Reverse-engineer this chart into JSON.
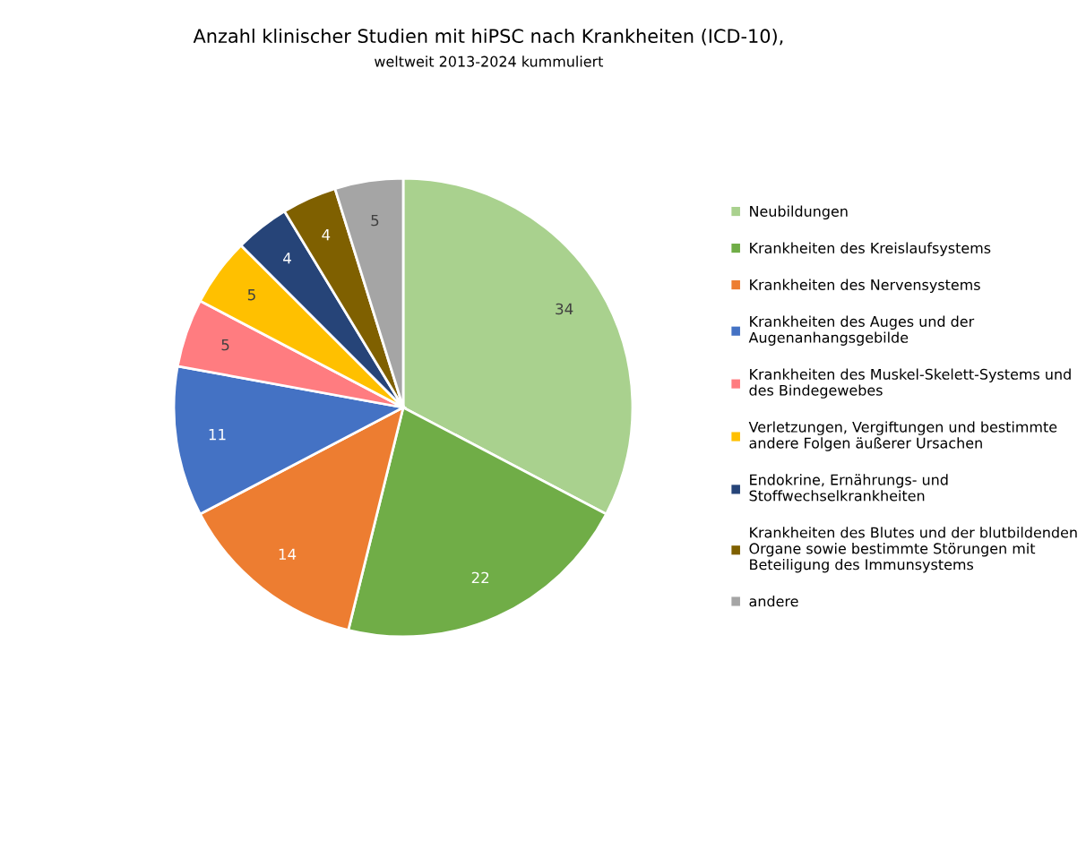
{
  "chart_data": {
    "type": "pie",
    "title": "Anzahl klinischer Studien mit hiPSC nach Krankheiten (ICD-10),",
    "subtitle": "weltweit 2013-2024 kummuliert",
    "categories": [
      "Neubildungen",
      "Krankheiten des Kreislaufsystems",
      "Krankheiten des Nervensystems",
      "Krankheiten des Auges und der\nAugenanhangsgebilde",
      "Krankheiten des Muskel-Skelett-Systems und\ndes Bindegewebes",
      "Verletzungen, Vergiftungen und bestimmte\nandere Folgen äußerer Ursachen",
      "Endokrine, Ernährungs- und\nStoffwechselkrankheiten",
      "Krankheiten des Blutes und der blutbildenden\nOrgane sowie bestimmte Störungen mit\nBeteiligung des Immunsystems",
      "andere"
    ],
    "values": [
      34,
      22,
      14,
      11,
      5,
      5,
      4,
      4,
      5
    ],
    "colors": [
      "#a9d18e",
      "#70ad47",
      "#ed7d31",
      "#4472c4",
      "#ff7c80",
      "#ffc000",
      "#264478",
      "#7f6000",
      "#a5a5a5"
    ],
    "data_labels": true,
    "legend": "right"
  }
}
